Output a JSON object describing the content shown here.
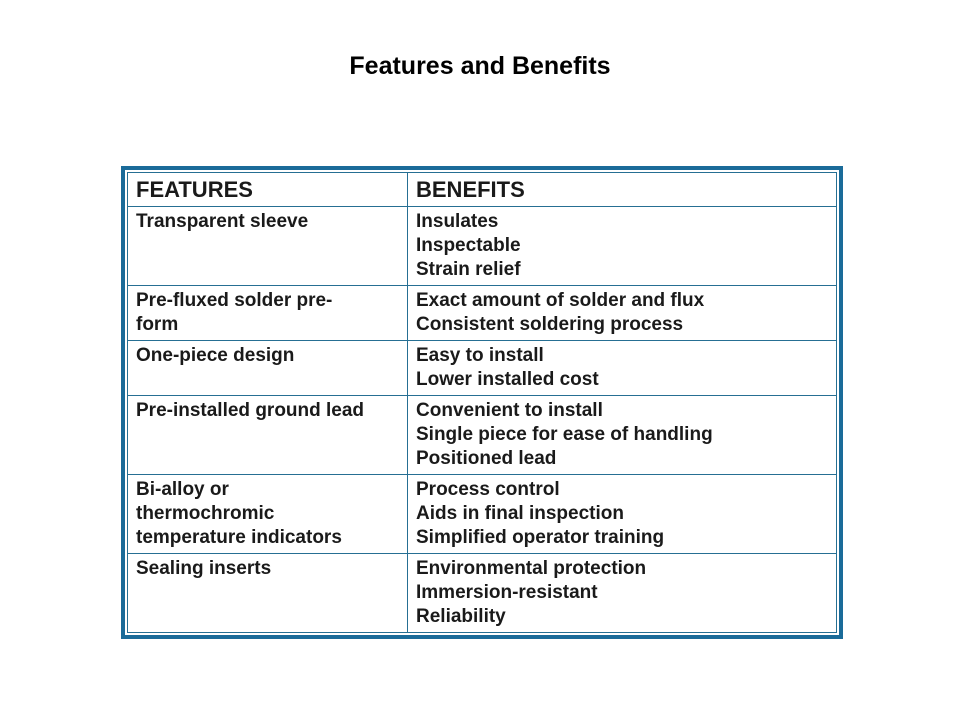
{
  "slide": {
    "title": "Features and Benefits",
    "background_color": "#ffffff",
    "title_color": "#000000"
  },
  "table": {
    "border_outer_color": "#1a6b99",
    "border_inner_color": "#266f93",
    "text_color": "#1a1a1a",
    "columns": [
      "FEATURES",
      "BENEFITS"
    ],
    "rows": [
      {
        "feature": "Transparent sleeve",
        "benefits": "Insulates\nInspectable\nStrain relief"
      },
      {
        "feature": "Pre-fluxed solder pre-\nform",
        "benefits": "Exact amount of solder and flux\nConsistent soldering process"
      },
      {
        "feature": "One-piece design",
        "benefits": "Easy to install\nLower installed cost"
      },
      {
        "feature": "Pre-installed ground lead",
        "benefits": "Convenient to install\nSingle piece for ease of handling\nPositioned lead"
      },
      {
        "feature": "Bi-alloy or\nthermochromic\ntemperature indicators",
        "benefits": "Process control\nAids in final inspection\nSimplified operator training"
      },
      {
        "feature": "Sealing inserts",
        "benefits": "Environmental protection\nImmersion-resistant\nReliability"
      }
    ]
  }
}
